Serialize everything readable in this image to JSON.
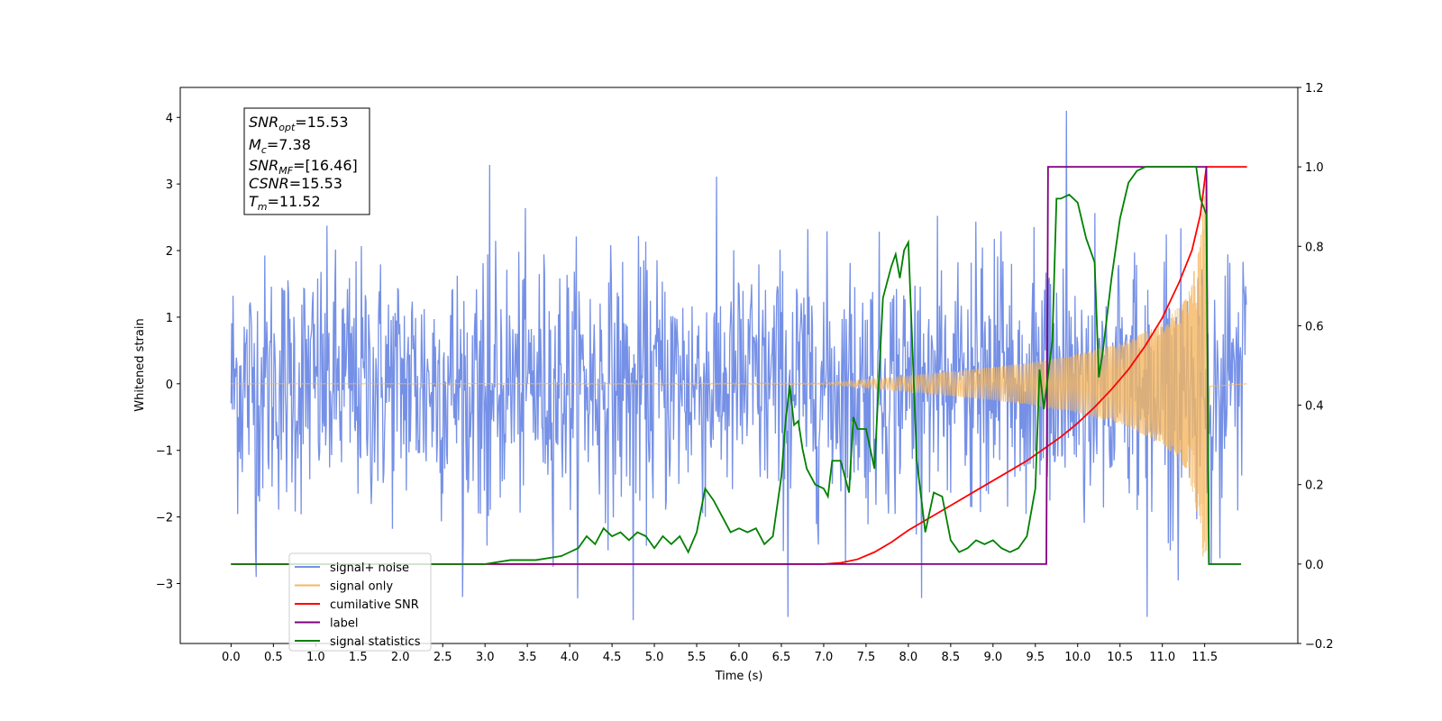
{
  "chart_data": {
    "type": "line",
    "xlabel": "Time (s)",
    "ylabel": "Whitened strain",
    "xlim": [
      -0.6,
      12.6
    ],
    "ylim": [
      -3.9,
      4.45
    ],
    "y2lim": [
      -0.2,
      1.2
    ],
    "x_ticks": [
      "0.0",
      "0.5",
      "1.0",
      "1.5",
      "2.0",
      "2.5",
      "3.0",
      "3.5",
      "4.0",
      "4.5",
      "5.0",
      "5.5",
      "6.0",
      "6.5",
      "7.0",
      "7.5",
      "8.0",
      "8.5",
      "9.0",
      "9.5",
      "10.0",
      "10.5",
      "11.0",
      "11.5"
    ],
    "y_ticks": [
      "−3",
      "−2",
      "−1",
      "0",
      "1",
      "2",
      "3",
      "4"
    ],
    "y2_ticks": [
      "−0.2",
      "0.0",
      "0.2",
      "0.4",
      "0.6",
      "0.8",
      "1.0",
      "1.2"
    ],
    "grid": false,
    "legend_position": "lower-left",
    "info_box": {
      "snr_opt": {
        "main": "SNR",
        "sub": "opt",
        "value": "=15.53"
      },
      "mc": {
        "main": "M",
        "sub": "c",
        "value": "=7.38"
      },
      "snr_mf": {
        "main": "SNR",
        "sub": "MF",
        "value": "=[16.46]"
      },
      "csnr": {
        "main": "CSNR",
        "value": "=15.53"
      },
      "tm": {
        "main": "T",
        "sub": "m",
        "value": "=11.52"
      }
    },
    "series": [
      {
        "name": "signal+ noise",
        "color": "#7590e6",
        "axis": "left",
        "kind": "noise",
        "sample_rate": 128,
        "x_range": [
          0.0,
          11.99
        ],
        "envelope_abs_max": 3.3,
        "notable_peaks": [
          [
            9.87,
            4.1
          ],
          [
            4.75,
            -3.55
          ],
          [
            6.58,
            -3.5
          ],
          [
            10.82,
            -3.5
          ],
          [
            0.3,
            -2.9
          ]
        ]
      },
      {
        "name": "signal only",
        "color": "#f5b760",
        "axis": "left",
        "kind": "chirp",
        "merger_time": 11.52,
        "envelope": [
          [
            0.0,
            0.0
          ],
          [
            7.0,
            0.01
          ],
          [
            7.5,
            0.06
          ],
          [
            8.0,
            0.12
          ],
          [
            9.0,
            0.25
          ],
          [
            9.5,
            0.33
          ],
          [
            10.0,
            0.45
          ],
          [
            10.5,
            0.6
          ],
          [
            11.0,
            0.9
          ],
          [
            11.3,
            1.3
          ],
          [
            11.45,
            2.2
          ],
          [
            11.52,
            3.2
          ],
          [
            11.56,
            0.05
          ],
          [
            12.0,
            0.0
          ]
        ]
      },
      {
        "name": "cumilative SNR",
        "color": "#ff0000",
        "axis": "right",
        "points": [
          [
            0.0,
            0.0
          ],
          [
            7.0,
            0.0
          ],
          [
            7.2,
            0.003
          ],
          [
            7.4,
            0.012
          ],
          [
            7.6,
            0.03
          ],
          [
            7.8,
            0.055
          ],
          [
            8.0,
            0.085
          ],
          [
            8.2,
            0.11
          ],
          [
            8.4,
            0.135
          ],
          [
            8.6,
            0.16
          ],
          [
            8.8,
            0.185
          ],
          [
            9.0,
            0.21
          ],
          [
            9.2,
            0.235
          ],
          [
            9.4,
            0.26
          ],
          [
            9.6,
            0.29
          ],
          [
            9.8,
            0.32
          ],
          [
            10.0,
            0.355
          ],
          [
            10.2,
            0.395
          ],
          [
            10.4,
            0.44
          ],
          [
            10.6,
            0.49
          ],
          [
            10.8,
            0.55
          ],
          [
            11.0,
            0.62
          ],
          [
            11.2,
            0.71
          ],
          [
            11.35,
            0.79
          ],
          [
            11.45,
            0.88
          ],
          [
            11.52,
            1.0
          ],
          [
            12.0,
            1.0
          ]
        ]
      },
      {
        "name": "label",
        "color": "#800080",
        "axis": "right",
        "points": [
          [
            0.0,
            0.0
          ],
          [
            9.63,
            0.0
          ],
          [
            9.65,
            1.0
          ],
          [
            11.52,
            1.0
          ],
          [
            11.55,
            0.0
          ],
          [
            11.93,
            0.0
          ]
        ]
      },
      {
        "name": "signal statistics",
        "color": "#008000",
        "axis": "right",
        "points": [
          [
            0.0,
            0.0
          ],
          [
            3.0,
            0.0
          ],
          [
            3.3,
            0.01
          ],
          [
            3.6,
            0.01
          ],
          [
            3.9,
            0.02
          ],
          [
            4.1,
            0.04
          ],
          [
            4.2,
            0.07
          ],
          [
            4.3,
            0.05
          ],
          [
            4.4,
            0.09
          ],
          [
            4.5,
            0.07
          ],
          [
            4.6,
            0.08
          ],
          [
            4.7,
            0.06
          ],
          [
            4.8,
            0.08
          ],
          [
            4.9,
            0.07
          ],
          [
            5.0,
            0.04
          ],
          [
            5.1,
            0.07
          ],
          [
            5.2,
            0.05
          ],
          [
            5.3,
            0.07
          ],
          [
            5.4,
            0.03
          ],
          [
            5.5,
            0.08
          ],
          [
            5.6,
            0.19
          ],
          [
            5.7,
            0.16
          ],
          [
            5.8,
            0.12
          ],
          [
            5.9,
            0.08
          ],
          [
            6.0,
            0.09
          ],
          [
            6.1,
            0.08
          ],
          [
            6.2,
            0.09
          ],
          [
            6.3,
            0.05
          ],
          [
            6.4,
            0.07
          ],
          [
            6.5,
            0.22
          ],
          [
            6.55,
            0.36
          ],
          [
            6.6,
            0.45
          ],
          [
            6.65,
            0.35
          ],
          [
            6.7,
            0.36
          ],
          [
            6.75,
            0.29
          ],
          [
            6.8,
            0.24
          ],
          [
            6.9,
            0.2
          ],
          [
            7.0,
            0.19
          ],
          [
            7.05,
            0.17
          ],
          [
            7.1,
            0.26
          ],
          [
            7.2,
            0.26
          ],
          [
            7.3,
            0.18
          ],
          [
            7.35,
            0.37
          ],
          [
            7.4,
            0.34
          ],
          [
            7.5,
            0.34
          ],
          [
            7.6,
            0.24
          ],
          [
            7.7,
            0.67
          ],
          [
            7.8,
            0.75
          ],
          [
            7.85,
            0.78
          ],
          [
            7.9,
            0.72
          ],
          [
            7.95,
            0.79
          ],
          [
            8.0,
            0.81
          ],
          [
            8.1,
            0.26
          ],
          [
            8.2,
            0.08
          ],
          [
            8.3,
            0.18
          ],
          [
            8.4,
            0.17
          ],
          [
            8.5,
            0.06
          ],
          [
            8.6,
            0.03
          ],
          [
            8.7,
            0.04
          ],
          [
            8.8,
            0.06
          ],
          [
            8.9,
            0.05
          ],
          [
            9.0,
            0.06
          ],
          [
            9.1,
            0.04
          ],
          [
            9.2,
            0.03
          ],
          [
            9.3,
            0.04
          ],
          [
            9.4,
            0.07
          ],
          [
            9.5,
            0.19
          ],
          [
            9.55,
            0.49
          ],
          [
            9.6,
            0.39
          ],
          [
            9.7,
            0.56
          ],
          [
            9.75,
            0.92
          ],
          [
            9.8,
            0.92
          ],
          [
            9.9,
            0.93
          ],
          [
            10.0,
            0.91
          ],
          [
            10.1,
            0.82
          ],
          [
            10.2,
            0.76
          ],
          [
            10.25,
            0.47
          ],
          [
            10.3,
            0.54
          ],
          [
            10.4,
            0.72
          ],
          [
            10.5,
            0.87
          ],
          [
            10.6,
            0.96
          ],
          [
            10.7,
            0.99
          ],
          [
            10.8,
            1.0
          ],
          [
            11.0,
            1.0
          ],
          [
            11.2,
            1.0
          ],
          [
            11.4,
            1.0
          ],
          [
            11.45,
            0.92
          ],
          [
            11.52,
            0.88
          ],
          [
            11.55,
            0.0
          ],
          [
            11.93,
            0.0
          ]
        ]
      }
    ]
  }
}
